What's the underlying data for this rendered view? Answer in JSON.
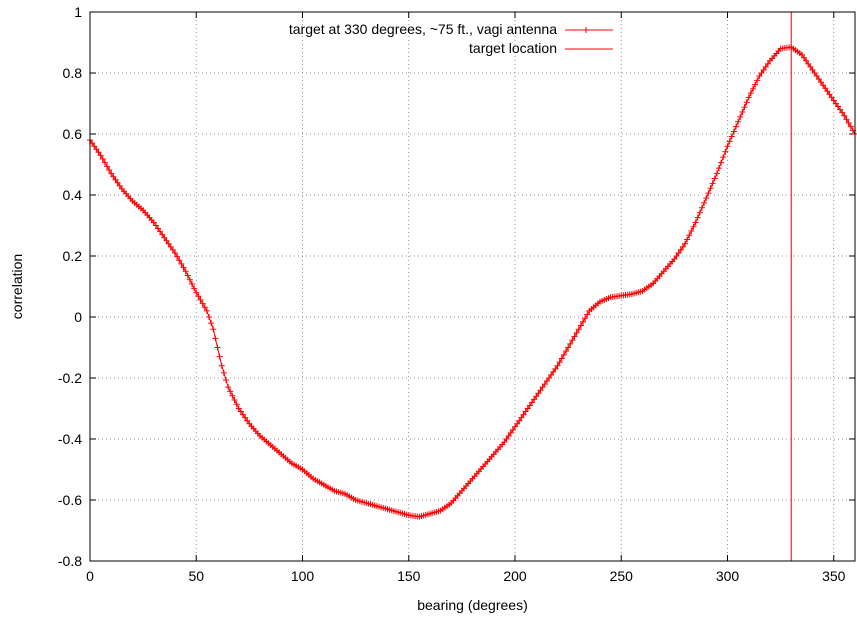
{
  "chart_data": {
    "type": "line",
    "title": "",
    "xlabel": "bearing (degrees)",
    "ylabel": "correlation",
    "xlim": [
      0,
      360
    ],
    "ylim": [
      -0.8,
      1.0
    ],
    "xticks": [
      0,
      50,
      100,
      150,
      200,
      250,
      300,
      350
    ],
    "xtick_labels": [
      "0",
      "50",
      "100",
      "150",
      "200",
      "250",
      "300",
      "350"
    ],
    "yticks": [
      -0.8,
      -0.6,
      -0.4,
      -0.2,
      0,
      0.2,
      0.4,
      0.6,
      0.8,
      1.0
    ],
    "ytick_labels": [
      "-0.8",
      "-0.6",
      "-0.4",
      "-0.2",
      "0",
      "0.2",
      "0.4",
      "0.6",
      "0.8",
      "1"
    ],
    "grid": true,
    "legend_position": "top-center",
    "series": [
      {
        "name": "target at 330 degrees, ~75 ft., vagi antenna",
        "color": "#ff0000",
        "marker": "plus",
        "points": [
          [
            0,
            0.58
          ],
          [
            5,
            0.53
          ],
          [
            10,
            0.47
          ],
          [
            15,
            0.42
          ],
          [
            20,
            0.38
          ],
          [
            25,
            0.35
          ],
          [
            30,
            0.31
          ],
          [
            35,
            0.26
          ],
          [
            40,
            0.21
          ],
          [
            45,
            0.15
          ],
          [
            50,
            0.08
          ],
          [
            55,
            0.02
          ],
          [
            58,
            -0.04
          ],
          [
            60,
            -0.1
          ],
          [
            62,
            -0.16
          ],
          [
            65,
            -0.23
          ],
          [
            70,
            -0.3
          ],
          [
            75,
            -0.35
          ],
          [
            80,
            -0.39
          ],
          [
            85,
            -0.42
          ],
          [
            90,
            -0.45
          ],
          [
            95,
            -0.48
          ],
          [
            100,
            -0.5
          ],
          [
            105,
            -0.53
          ],
          [
            110,
            -0.55
          ],
          [
            115,
            -0.57
          ],
          [
            120,
            -0.58
          ],
          [
            125,
            -0.6
          ],
          [
            130,
            -0.61
          ],
          [
            135,
            -0.62
          ],
          [
            140,
            -0.63
          ],
          [
            145,
            -0.64
          ],
          [
            150,
            -0.65
          ],
          [
            155,
            -0.655
          ],
          [
            160,
            -0.645
          ],
          [
            165,
            -0.635
          ],
          [
            170,
            -0.61
          ],
          [
            175,
            -0.57
          ],
          [
            180,
            -0.53
          ],
          [
            185,
            -0.49
          ],
          [
            190,
            -0.45
          ],
          [
            195,
            -0.41
          ],
          [
            200,
            -0.36
          ],
          [
            205,
            -0.31
          ],
          [
            210,
            -0.26
          ],
          [
            215,
            -0.21
          ],
          [
            220,
            -0.16
          ],
          [
            225,
            -0.1
          ],
          [
            230,
            -0.04
          ],
          [
            235,
            0.02
          ],
          [
            240,
            0.05
          ],
          [
            245,
            0.065
          ],
          [
            250,
            0.07
          ],
          [
            255,
            0.075
          ],
          [
            260,
            0.085
          ],
          [
            265,
            0.11
          ],
          [
            270,
            0.15
          ],
          [
            275,
            0.19
          ],
          [
            280,
            0.24
          ],
          [
            285,
            0.31
          ],
          [
            290,
            0.39
          ],
          [
            295,
            0.47
          ],
          [
            300,
            0.56
          ],
          [
            305,
            0.64
          ],
          [
            310,
            0.72
          ],
          [
            315,
            0.79
          ],
          [
            320,
            0.84
          ],
          [
            325,
            0.88
          ],
          [
            330,
            0.885
          ],
          [
            335,
            0.86
          ],
          [
            340,
            0.81
          ],
          [
            345,
            0.76
          ],
          [
            350,
            0.71
          ],
          [
            355,
            0.66
          ],
          [
            360,
            0.6
          ]
        ]
      },
      {
        "name": "target location",
        "color": "#ff0000",
        "marker": "none",
        "type": "vline",
        "x": 330
      }
    ]
  }
}
